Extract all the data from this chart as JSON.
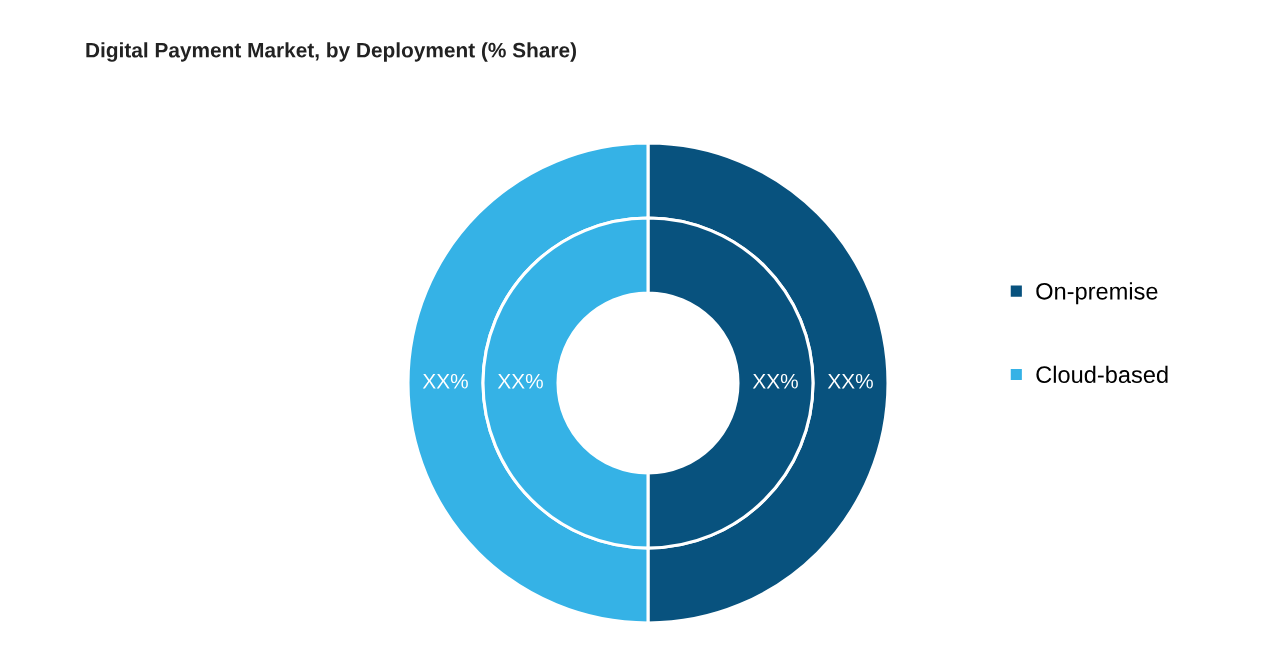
{
  "chart_data": {
    "type": "donut",
    "title": "Digital Payment Market, by Deployment (% Share)",
    "categories": [
      "On-premise",
      "Cloud-based"
    ],
    "colors": [
      "#08527e",
      "#35b2e6"
    ],
    "series": [
      {
        "values": [
          50,
          50
        ],
        "value_labels": [
          "XX%",
          "XX%"
        ]
      },
      {
        "values": [
          50,
          50
        ],
        "value_labels": [
          "XX%",
          "XX%"
        ]
      }
    ],
    "legend": "right"
  }
}
